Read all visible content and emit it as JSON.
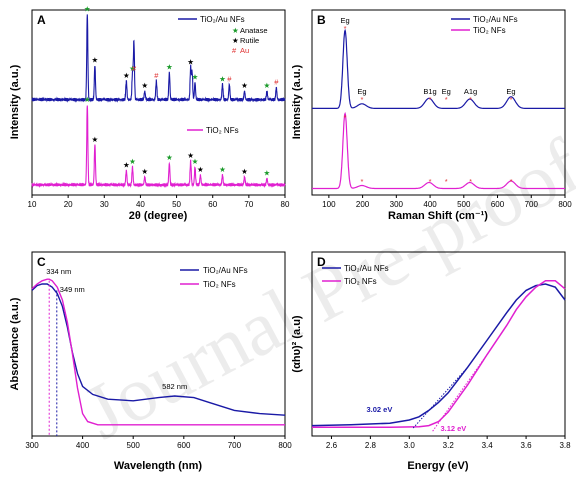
{
  "colors": {
    "blue": "#1a1aa6",
    "magenta": "#e020d0",
    "black": "#000000",
    "green_star": "#1a9a2a",
    "red_mark": "#e03030"
  },
  "watermark": "Journal Pre-proof",
  "chart_data": [
    {
      "panel": "A",
      "type": "line",
      "xlabel": "2θ (degree)",
      "ylabel": "Intensity (a.u.)",
      "xlim": [
        10,
        80
      ],
      "xticks": [
        "10",
        "20",
        "30",
        "40",
        "50",
        "60",
        "70",
        "80"
      ],
      "series": [
        {
          "name": "TiO₂/Au NFs",
          "color": "#1a1aa6",
          "peaks": [
            [
              25.3,
              1.0
            ],
            [
              27.4,
              0.4
            ],
            [
              36.1,
              0.22
            ],
            [
              37.8,
              0.3
            ],
            [
              38.2,
              0.68
            ],
            [
              41.2,
              0.1
            ],
            [
              44.4,
              0.22
            ],
            [
              48.0,
              0.32
            ],
            [
              53.9,
              0.38
            ],
            [
              54.3,
              0.32
            ],
            [
              55.1,
              0.2
            ],
            [
              62.7,
              0.18
            ],
            [
              64.6,
              0.18
            ],
            [
              68.8,
              0.1
            ],
            [
              75.0,
              0.1
            ],
            [
              77.6,
              0.14
            ]
          ]
        },
        {
          "name": "TiO₂ NFs",
          "color": "#e020d0",
          "peaks": [
            [
              25.3,
              1.0
            ],
            [
              27.4,
              0.5
            ],
            [
              36.1,
              0.18
            ],
            [
              37.8,
              0.22
            ],
            [
              41.2,
              0.1
            ],
            [
              48.0,
              0.27
            ],
            [
              53.9,
              0.3
            ],
            [
              55.1,
              0.22
            ],
            [
              56.6,
              0.12
            ],
            [
              62.7,
              0.12
            ],
            [
              68.8,
              0.1
            ],
            [
              75.0,
              0.08
            ]
          ]
        }
      ],
      "legend_markers": [
        {
          "symbol": "★",
          "label": "Anatase",
          "color": "#1a9a2a"
        },
        {
          "symbol": "★",
          "label": "Rutile",
          "color": "#000000"
        },
        {
          "symbol": "#",
          "label": "Au",
          "color": "#e03030"
        }
      ],
      "markers": {
        "top": [
          {
            "x": 25.3,
            "sym": "★",
            "color": "#1a9a2a"
          },
          {
            "x": 27.4,
            "sym": "★",
            "color": "#000000"
          },
          {
            "x": 36.1,
            "sym": "★",
            "color": "#000000"
          },
          {
            "x": 37.8,
            "sym": "★",
            "color": "#1a9a2a"
          },
          {
            "x": 38.2,
            "sym": "#",
            "color": "#e03030"
          },
          {
            "x": 41.2,
            "sym": "★",
            "color": "#000000"
          },
          {
            "x": 44.4,
            "sym": "#",
            "color": "#e03030"
          },
          {
            "x": 48.0,
            "sym": "★",
            "color": "#1a9a2a"
          },
          {
            "x": 53.9,
            "sym": "★",
            "color": "#000000"
          },
          {
            "x": 55.1,
            "sym": "★",
            "color": "#1a9a2a"
          },
          {
            "x": 62.7,
            "sym": "★",
            "color": "#1a9a2a"
          },
          {
            "x": 64.6,
            "sym": "#",
            "color": "#e03030"
          },
          {
            "x": 68.8,
            "sym": "★",
            "color": "#000000"
          },
          {
            "x": 75.0,
            "sym": "★",
            "color": "#1a9a2a"
          },
          {
            "x": 77.6,
            "sym": "#",
            "color": "#e03030"
          }
        ],
        "bottom": [
          {
            "x": 25.3,
            "sym": "★",
            "color": "#1a9a2a"
          },
          {
            "x": 27.4,
            "sym": "★",
            "color": "#000000"
          },
          {
            "x": 36.1,
            "sym": "★",
            "color": "#000000"
          },
          {
            "x": 37.8,
            "sym": "★",
            "color": "#1a9a2a"
          },
          {
            "x": 41.2,
            "sym": "★",
            "color": "#000000"
          },
          {
            "x": 48.0,
            "sym": "★",
            "color": "#1a9a2a"
          },
          {
            "x": 53.9,
            "sym": "★",
            "color": "#000000"
          },
          {
            "x": 55.1,
            "sym": "★",
            "color": "#1a9a2a"
          },
          {
            "x": 56.6,
            "sym": "★",
            "color": "#000000"
          },
          {
            "x": 62.7,
            "sym": "★",
            "color": "#1a9a2a"
          },
          {
            "x": 68.8,
            "sym": "★",
            "color": "#000000"
          },
          {
            "x": 75.0,
            "sym": "★",
            "color": "#1a9a2a"
          }
        ]
      }
    },
    {
      "panel": "B",
      "type": "line",
      "xlabel": "Raman Shift (cm⁻¹)",
      "ylabel": "Intensity (a.u.)",
      "xlim": [
        50,
        800
      ],
      "xticks": [
        "100",
        "200",
        "300",
        "400",
        "500",
        "600",
        "700",
        "800"
      ],
      "series": [
        {
          "name": "TiO₂/Au NFs",
          "color": "#1a1aa6",
          "peaks": [
            [
              148,
              1.0
            ],
            [
              198,
              0.06
            ],
            [
              397,
              0.13
            ],
            [
              518,
              0.12
            ],
            [
              640,
              0.15
            ]
          ]
        },
        {
          "name": "TiO₂ NFs",
          "color": "#e020d0",
          "peaks": [
            [
              148,
              1.0
            ],
            [
              198,
              0.04
            ],
            [
              397,
              0.08
            ],
            [
              518,
              0.08
            ],
            [
              640,
              0.1
            ]
          ]
        }
      ],
      "peak_labels": [
        "Eg",
        "Eg",
        "B1g",
        "Eg",
        "A1g",
        "Eg"
      ],
      "peak_label_x": [
        148,
        198,
        400,
        448,
        520,
        640
      ]
    },
    {
      "panel": "C",
      "type": "line",
      "xlabel": "Wavelength (nm)",
      "ylabel": "Absorbance (a.u.)",
      "xlim": [
        300,
        800
      ],
      "xticks": [
        "300",
        "400",
        "500",
        "600",
        "700",
        "800"
      ],
      "series": [
        {
          "name": "TiO₂/Au NFs",
          "color": "#1a1aa6",
          "points": [
            [
              300,
              0.86
            ],
            [
              310,
              0.89
            ],
            [
              320,
              0.9
            ],
            [
              330,
              0.9
            ],
            [
              340,
              0.88
            ],
            [
              350,
              0.84
            ],
            [
              360,
              0.76
            ],
            [
              370,
              0.63
            ],
            [
              380,
              0.47
            ],
            [
              390,
              0.34
            ],
            [
              400,
              0.26
            ],
            [
              420,
              0.21
            ],
            [
              450,
              0.18
            ],
            [
              500,
              0.17
            ],
            [
              550,
              0.19
            ],
            [
              582,
              0.2
            ],
            [
              620,
              0.19
            ],
            [
              650,
              0.16
            ],
            [
              700,
              0.11
            ],
            [
              750,
              0.09
            ],
            [
              800,
              0.08
            ]
          ]
        },
        {
          "name": "TiO₂ NFs",
          "color": "#e020d0",
          "points": [
            [
              300,
              0.87
            ],
            [
              310,
              0.9
            ],
            [
              320,
              0.92
            ],
            [
              330,
              0.93
            ],
            [
              334,
              0.93
            ],
            [
              340,
              0.92
            ],
            [
              350,
              0.88
            ],
            [
              360,
              0.8
            ],
            [
              370,
              0.66
            ],
            [
              380,
              0.46
            ],
            [
              390,
              0.25
            ],
            [
              400,
              0.09
            ],
            [
              410,
              0.04
            ],
            [
              430,
              0.02
            ],
            [
              500,
              0.02
            ],
            [
              800,
              0.02
            ]
          ]
        }
      ],
      "annotations": [
        {
          "text": "334 nm",
          "x": 334
        },
        {
          "text": "349 nm",
          "x": 349
        },
        {
          "text": "582 nm",
          "x": 582
        }
      ]
    },
    {
      "panel": "D",
      "type": "line",
      "xlabel": "Energy (eV)",
      "ylabel": "(αhυ)² (a.u)",
      "xlim": [
        2.5,
        3.8
      ],
      "xticks": [
        "2.6",
        "2.8",
        "3.0",
        "3.2",
        "3.4",
        "3.6",
        "3.8"
      ],
      "series": [
        {
          "name": "TiO₂/Au NFs",
          "color": "#1a1aa6",
          "points": [
            [
              2.5,
              0.015
            ],
            [
              2.7,
              0.02
            ],
            [
              2.9,
              0.03
            ],
            [
              3.0,
              0.05
            ],
            [
              3.05,
              0.07
            ],
            [
              3.1,
              0.11
            ],
            [
              3.15,
              0.16
            ],
            [
              3.2,
              0.22
            ],
            [
              3.3,
              0.38
            ],
            [
              3.4,
              0.55
            ],
            [
              3.5,
              0.72
            ],
            [
              3.55,
              0.8
            ],
            [
              3.6,
              0.86
            ],
            [
              3.65,
              0.89
            ],
            [
              3.7,
              0.9
            ],
            [
              3.75,
              0.88
            ],
            [
              3.8,
              0.8
            ]
          ]
        },
        {
          "name": "TiO₂ NFs",
          "color": "#e020d0",
          "points": [
            [
              2.5,
              0.005
            ],
            [
              2.9,
              0.005
            ],
            [
              3.05,
              0.008
            ],
            [
              3.1,
              0.015
            ],
            [
              3.15,
              0.04
            ],
            [
              3.2,
              0.1
            ],
            [
              3.3,
              0.27
            ],
            [
              3.4,
              0.46
            ],
            [
              3.5,
              0.64
            ],
            [
              3.55,
              0.74
            ],
            [
              3.6,
              0.82
            ],
            [
              3.65,
              0.88
            ],
            [
              3.7,
              0.92
            ],
            [
              3.75,
              0.92
            ],
            [
              3.8,
              0.87
            ]
          ]
        }
      ],
      "annotations": [
        {
          "text": "3.02 eV",
          "x": 3.02
        },
        {
          "text": "3.12 eV",
          "x": 3.12
        }
      ]
    }
  ]
}
